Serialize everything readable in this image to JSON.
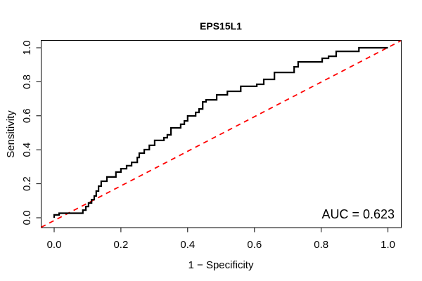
{
  "title": "EPS15L1",
  "annotation": "AUC = 0.623",
  "colors": {
    "curve": "#000000",
    "diagonal": "#ff0000",
    "box": "#000000",
    "text": "#000000",
    "background": "#ffffff"
  },
  "chart_data": {
    "type": "line",
    "subtype": "roc-curve",
    "title": "EPS15L1",
    "xlabel": "1 − Specificity",
    "ylabel": "Sensitivity",
    "xlim": [
      0,
      1
    ],
    "ylim": [
      0,
      1
    ],
    "grid": false,
    "legend": false,
    "x_ticks": [
      "0.0",
      "0.2",
      "0.4",
      "0.6",
      "0.8",
      "1.0"
    ],
    "y_ticks": [
      "0.0",
      "0.2",
      "0.4",
      "0.6",
      "0.8",
      "1.0"
    ],
    "annotation": "AUC = 0.623",
    "auc": 0.623,
    "series": [
      {
        "name": "ROC step curve",
        "color": "#000000",
        "style": "solid",
        "line_width": 2,
        "points": [
          [
            0.0,
            0.0
          ],
          [
            0.0,
            0.017
          ],
          [
            0.015,
            0.017
          ],
          [
            0.015,
            0.027
          ],
          [
            0.086,
            0.027
          ],
          [
            0.086,
            0.045
          ],
          [
            0.095,
            0.045
          ],
          [
            0.095,
            0.066
          ],
          [
            0.103,
            0.066
          ],
          [
            0.103,
            0.087
          ],
          [
            0.112,
            0.087
          ],
          [
            0.112,
            0.107
          ],
          [
            0.12,
            0.107
          ],
          [
            0.12,
            0.128
          ],
          [
            0.126,
            0.128
          ],
          [
            0.126,
            0.157
          ],
          [
            0.133,
            0.157
          ],
          [
            0.133,
            0.186
          ],
          [
            0.141,
            0.186
          ],
          [
            0.141,
            0.215
          ],
          [
            0.158,
            0.215
          ],
          [
            0.158,
            0.24
          ],
          [
            0.185,
            0.24
          ],
          [
            0.185,
            0.269
          ],
          [
            0.2,
            0.269
          ],
          [
            0.2,
            0.289
          ],
          [
            0.217,
            0.289
          ],
          [
            0.217,
            0.306
          ],
          [
            0.232,
            0.306
          ],
          [
            0.232,
            0.326
          ],
          [
            0.249,
            0.326
          ],
          [
            0.249,
            0.355
          ],
          [
            0.255,
            0.355
          ],
          [
            0.255,
            0.38
          ],
          [
            0.27,
            0.38
          ],
          [
            0.27,
            0.401
          ],
          [
            0.285,
            0.401
          ],
          [
            0.285,
            0.426
          ],
          [
            0.301,
            0.426
          ],
          [
            0.301,
            0.455
          ],
          [
            0.329,
            0.455
          ],
          [
            0.329,
            0.471
          ],
          [
            0.339,
            0.471
          ],
          [
            0.339,
            0.488
          ],
          [
            0.35,
            0.488
          ],
          [
            0.35,
            0.529
          ],
          [
            0.379,
            0.529
          ],
          [
            0.379,
            0.55
          ],
          [
            0.39,
            0.55
          ],
          [
            0.39,
            0.57
          ],
          [
            0.4,
            0.57
          ],
          [
            0.4,
            0.599
          ],
          [
            0.424,
            0.599
          ],
          [
            0.424,
            0.62
          ],
          [
            0.434,
            0.62
          ],
          [
            0.434,
            0.64
          ],
          [
            0.445,
            0.64
          ],
          [
            0.445,
            0.682
          ],
          [
            0.455,
            0.682
          ],
          [
            0.455,
            0.694
          ],
          [
            0.487,
            0.694
          ],
          [
            0.487,
            0.723
          ],
          [
            0.519,
            0.723
          ],
          [
            0.519,
            0.744
          ],
          [
            0.559,
            0.744
          ],
          [
            0.559,
            0.773
          ],
          [
            0.607,
            0.773
          ],
          [
            0.607,
            0.785
          ],
          [
            0.628,
            0.785
          ],
          [
            0.628,
            0.814
          ],
          [
            0.66,
            0.814
          ],
          [
            0.66,
            0.855
          ],
          [
            0.719,
            0.855
          ],
          [
            0.719,
            0.888
          ],
          [
            0.731,
            0.888
          ],
          [
            0.731,
            0.917
          ],
          [
            0.803,
            0.917
          ],
          [
            0.803,
            0.938
          ],
          [
            0.822,
            0.938
          ],
          [
            0.822,
            0.95
          ],
          [
            0.845,
            0.95
          ],
          [
            0.845,
            0.979
          ],
          [
            0.913,
            0.979
          ],
          [
            0.913,
            1.0
          ],
          [
            1.0,
            1.0
          ]
        ]
      },
      {
        "name": "Chance diagonal",
        "color": "#ff0000",
        "style": "dashed",
        "line_width": 2,
        "points": [
          [
            0,
            0
          ],
          [
            1,
            1
          ]
        ]
      }
    ]
  }
}
